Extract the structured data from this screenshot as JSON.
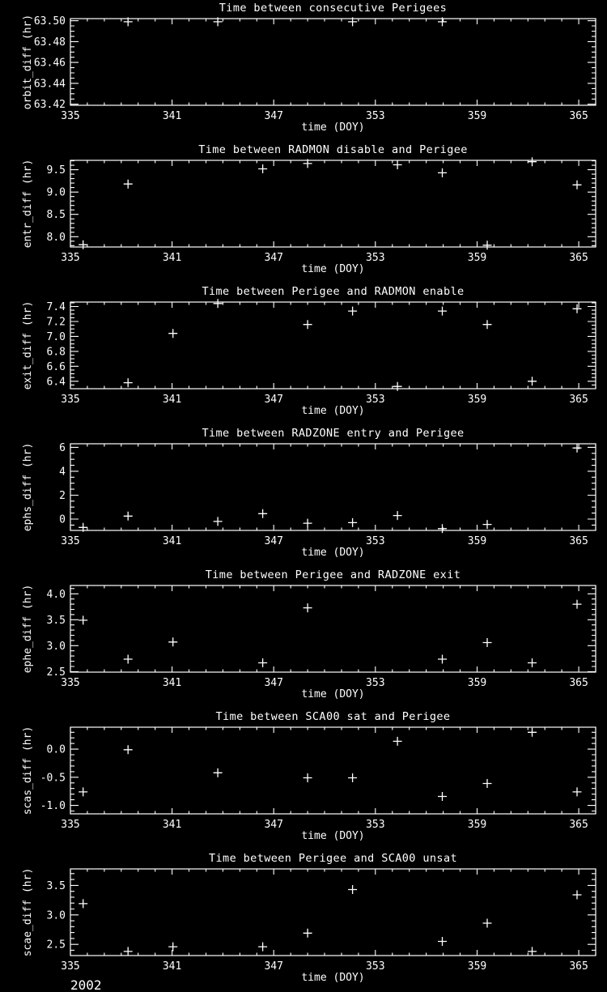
{
  "figure": {
    "background": "#000000",
    "foreground": "#ffffff",
    "annotation": "2002"
  },
  "chart_data": [
    {
      "type": "scatter",
      "title": "Time between consecutive Perigees",
      "xlabel": "time (DOY)",
      "ylabel": "orbit_diff (hr)",
      "xlim": [
        335,
        366
      ],
      "ylim": [
        63.419,
        63.502
      ],
      "xticks": [
        335,
        341,
        347,
        353,
        359,
        365
      ],
      "xtick_labels": [
        "335",
        "341",
        "347",
        "353",
        "359",
        "365"
      ],
      "xminor": 1,
      "yticks": [
        63.42,
        63.44,
        63.46,
        63.48,
        63.5
      ],
      "ytick_labels": [
        "63.42",
        "63.44",
        "63.46",
        "63.48",
        "63.50"
      ],
      "yminor": 0.005,
      "marker": "plus",
      "points": [
        [
          338.4,
          63.499
        ],
        [
          343.7,
          63.499
        ],
        [
          351.65,
          63.499
        ],
        [
          356.95,
          63.499
        ]
      ]
    },
    {
      "type": "scatter",
      "title": "Time between RADMON disable and Perigee",
      "xlabel": "time (DOY)",
      "ylabel": "entr_diff (hr)",
      "xlim": [
        335,
        366
      ],
      "ylim": [
        7.77,
        9.71
      ],
      "xticks": [
        335,
        341,
        347,
        353,
        359,
        365
      ],
      "xtick_labels": [
        "335",
        "341",
        "347",
        "353",
        "359",
        "365"
      ],
      "xminor": 1,
      "yticks": [
        8.0,
        8.5,
        9.0,
        9.5
      ],
      "ytick_labels": [
        "8.0",
        "8.5",
        "9.0",
        "9.5"
      ],
      "yminor": 0.1,
      "marker": "plus",
      "points": [
        [
          335.75,
          7.82
        ],
        [
          338.4,
          9.18
        ],
        [
          346.35,
          9.52
        ],
        [
          349.0,
          9.64
        ],
        [
          354.3,
          9.61
        ],
        [
          356.95,
          9.43
        ],
        [
          359.6,
          7.81
        ],
        [
          362.25,
          9.68
        ],
        [
          364.9,
          9.16
        ]
      ]
    },
    {
      "type": "scatter",
      "title": "Time between Perigee and RADMON enable",
      "xlabel": "time (DOY)",
      "ylabel": "exit_diff (hr)",
      "xlim": [
        335,
        366
      ],
      "ylim": [
        6.3,
        7.46
      ],
      "xticks": [
        335,
        341,
        347,
        353,
        359,
        365
      ],
      "xtick_labels": [
        "335",
        "341",
        "347",
        "353",
        "359",
        "365"
      ],
      "xminor": 1,
      "yticks": [
        6.4,
        6.6,
        6.8,
        7.0,
        7.2,
        7.4
      ],
      "ytick_labels": [
        "6.4",
        "6.6",
        "6.8",
        "7.0",
        "7.2",
        "7.4"
      ],
      "yminor": 0.05,
      "marker": "plus",
      "points": [
        [
          338.4,
          6.38
        ],
        [
          341.05,
          7.04
        ],
        [
          343.7,
          7.44
        ],
        [
          349.0,
          7.16
        ],
        [
          351.65,
          7.34
        ],
        [
          354.3,
          6.33
        ],
        [
          356.95,
          7.34
        ],
        [
          359.6,
          7.16
        ],
        [
          362.25,
          6.4
        ],
        [
          364.9,
          7.37
        ]
      ]
    },
    {
      "type": "scatter",
      "title": "Time between RADZONE entry and Perigee",
      "xlabel": "time (DOY)",
      "ylabel": "ephs_diff (hr)",
      "xlim": [
        335,
        366
      ],
      "ylim": [
        -0.95,
        6.3
      ],
      "xticks": [
        335,
        341,
        347,
        353,
        359,
        365
      ],
      "xtick_labels": [
        "335",
        "341",
        "347",
        "353",
        "359",
        "365"
      ],
      "xminor": 1,
      "yticks": [
        0,
        2,
        4,
        6
      ],
      "ytick_labels": [
        "0",
        "2",
        "4",
        "6"
      ],
      "yminor": 0.5,
      "marker": "plus",
      "points": [
        [
          335.75,
          -0.7
        ],
        [
          338.4,
          0.25
        ],
        [
          343.7,
          -0.2
        ],
        [
          346.35,
          0.45
        ],
        [
          349.0,
          -0.35
        ],
        [
          351.65,
          -0.3
        ],
        [
          354.3,
          0.3
        ],
        [
          356.95,
          -0.8
        ],
        [
          359.6,
          -0.45
        ],
        [
          364.9,
          5.95
        ]
      ]
    },
    {
      "type": "scatter",
      "title": "Time between Perigee and RADZONE exit",
      "xlabel": "time (DOY)",
      "ylabel": "ephe_diff (hr)",
      "xlim": [
        335,
        366
      ],
      "ylim": [
        2.49,
        4.16
      ],
      "xticks": [
        335,
        341,
        347,
        353,
        359,
        365
      ],
      "xtick_labels": [
        "335",
        "341",
        "347",
        "353",
        "359",
        "365"
      ],
      "xminor": 1,
      "yticks": [
        2.5,
        3.0,
        3.5,
        4.0
      ],
      "ytick_labels": [
        "2.5",
        "3.0",
        "3.5",
        "4.0"
      ],
      "yminor": 0.1,
      "marker": "plus",
      "points": [
        [
          335.75,
          3.49
        ],
        [
          338.4,
          2.74
        ],
        [
          341.05,
          3.07
        ],
        [
          346.35,
          2.67
        ],
        [
          349.0,
          3.73
        ],
        [
          356.95,
          2.74
        ],
        [
          359.6,
          3.06
        ],
        [
          362.25,
          2.67
        ],
        [
          364.9,
          3.8
        ]
      ]
    },
    {
      "type": "scatter",
      "title": "Time between SCA00 sat and Perigee",
      "xlabel": "time (DOY)",
      "ylabel": "scas_diff (hr)",
      "xlim": [
        335,
        366
      ],
      "ylim": [
        -1.15,
        0.39
      ],
      "xticks": [
        335,
        341,
        347,
        353,
        359,
        365
      ],
      "xtick_labels": [
        "335",
        "341",
        "347",
        "353",
        "359",
        "365"
      ],
      "xminor": 1,
      "yticks": [
        -1.0,
        -0.5,
        0.0
      ],
      "ytick_labels": [
        "-1.0",
        "-0.5",
        "0.0"
      ],
      "yminor": 0.1,
      "marker": "plus",
      "points": [
        [
          335.75,
          -0.76
        ],
        [
          338.4,
          -0.01
        ],
        [
          343.7,
          -0.42
        ],
        [
          349.0,
          -0.51
        ],
        [
          351.65,
          -0.51
        ],
        [
          354.3,
          0.14
        ],
        [
          356.95,
          -0.84
        ],
        [
          359.6,
          -0.61
        ],
        [
          362.25,
          0.3
        ],
        [
          364.9,
          -0.76
        ]
      ]
    },
    {
      "type": "scatter",
      "title": "Time between Perigee and SCA00 unsat",
      "xlabel": "time (DOY)",
      "ylabel": "scae_diff (hr)",
      "xlim": [
        335,
        366
      ],
      "ylim": [
        2.31,
        3.78
      ],
      "xticks": [
        335,
        341,
        347,
        353,
        359,
        365
      ],
      "xtick_labels": [
        "335",
        "341",
        "347",
        "353",
        "359",
        "365"
      ],
      "xminor": 1,
      "yticks": [
        2.5,
        3.0,
        3.5
      ],
      "ytick_labels": [
        "2.5",
        "3.0",
        "3.5"
      ],
      "yminor": 0.1,
      "marker": "plus",
      "points": [
        [
          335.75,
          3.19
        ],
        [
          338.4,
          2.38
        ],
        [
          341.05,
          2.46
        ],
        [
          346.35,
          2.46
        ],
        [
          349.0,
          2.69
        ],
        [
          351.65,
          3.43
        ],
        [
          356.95,
          2.55
        ],
        [
          359.6,
          2.86
        ],
        [
          362.25,
          2.38
        ],
        [
          364.9,
          3.34
        ]
      ]
    }
  ]
}
